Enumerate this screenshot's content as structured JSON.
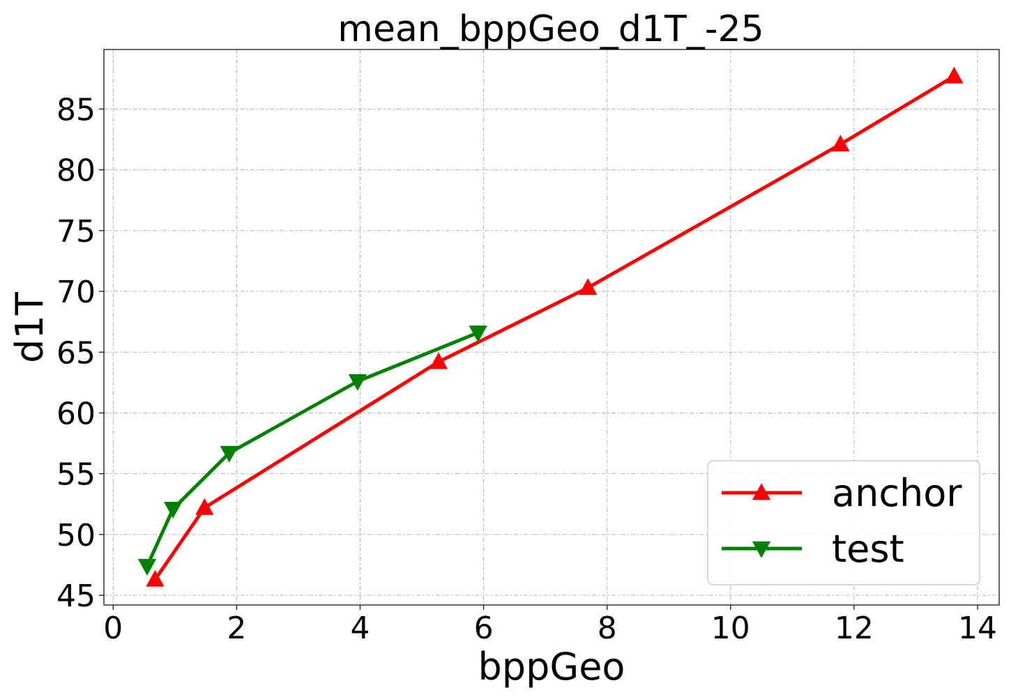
{
  "chart_data": {
    "type": "line",
    "title": "mean_bppGeo_d1T_-25",
    "xlabel": "bppGeo",
    "ylabel": "d1T",
    "xlim": [
      -0.15,
      14.35
    ],
    "ylim": [
      44.2,
      89.9
    ],
    "xticks": [
      0,
      2,
      4,
      6,
      8,
      10,
      12,
      14
    ],
    "yticks": [
      45,
      50,
      55,
      60,
      65,
      70,
      75,
      80,
      85
    ],
    "grid": true,
    "legend_position": "lower-right",
    "series": [
      {
        "name": "anchor",
        "color": "#ff0000",
        "marker": "triangle-up",
        "x": [
          0.68,
          1.48,
          5.27,
          7.69,
          11.78,
          13.62
        ],
        "y": [
          46.3,
          52.2,
          64.2,
          70.3,
          82.1,
          87.7
        ]
      },
      {
        "name": "test",
        "color": "#008000",
        "marker": "triangle-down",
        "x": [
          0.55,
          0.97,
          1.88,
          3.96,
          5.91
        ],
        "y": [
          47.4,
          52.1,
          56.7,
          62.6,
          66.6
        ]
      }
    ]
  }
}
